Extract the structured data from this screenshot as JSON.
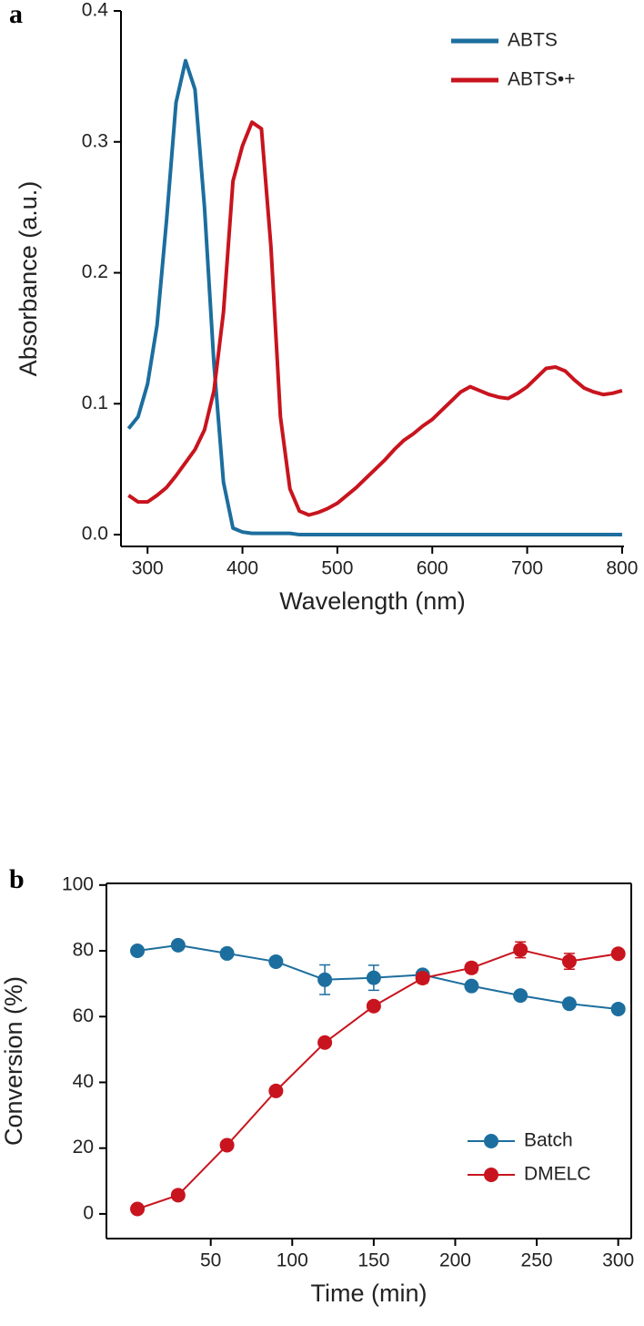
{
  "chart_data": [
    {
      "type": "line",
      "label": "a",
      "x_label": "Wavelength (nm)",
      "y_label": "Absorbance (a.u.)",
      "xlim": [
        272,
        802
      ],
      "ylim": [
        -0.009,
        0.4
      ],
      "xticks": [
        300,
        400,
        500,
        600,
        700,
        800
      ],
      "yticks": [
        {
          "value": 0,
          "label": "0.0"
        },
        0.1,
        0.2,
        0.3,
        0.4
      ],
      "box": false,
      "legend": "top-right",
      "x": [
        280,
        290,
        300,
        310,
        320,
        330,
        340,
        350,
        360,
        370,
        380,
        390,
        400,
        410,
        420,
        430,
        440,
        450,
        460,
        470,
        480,
        490,
        500,
        510,
        520,
        530,
        540,
        550,
        560,
        570,
        580,
        590,
        600,
        610,
        620,
        630,
        640,
        650,
        660,
        670,
        680,
        690,
        700,
        710,
        720,
        730,
        740,
        750,
        760,
        770,
        780,
        790,
        800
      ],
      "series": [
        {
          "name": "ABTS",
          "color": "#1c6e9e",
          "values": [
            0.081,
            0.09,
            0.115,
            0.16,
            0.24,
            0.33,
            0.362,
            0.34,
            0.25,
            0.13,
            0.04,
            0.005,
            0.002,
            0.001,
            0.001,
            0.001,
            0.001,
            0.001,
            0,
            0,
            0,
            0,
            0,
            0,
            0,
            0,
            0,
            0,
            0,
            0,
            0,
            0,
            0,
            0,
            0,
            0,
            0,
            0,
            0,
            0,
            0,
            0,
            0,
            0,
            0,
            0,
            0,
            0,
            0,
            0,
            0,
            0,
            0
          ]
        },
        {
          "name": "ABTS•+",
          "color": "#c8141e",
          "values": [
            0.03,
            0.025,
            0.025,
            0.03,
            0.036,
            0.045,
            0.055,
            0.065,
            0.08,
            0.11,
            0.17,
            0.27,
            0.297,
            0.315,
            0.31,
            0.22,
            0.09,
            0.035,
            0.018,
            0.015,
            0.017,
            0.02,
            0.024,
            0.03,
            0.036,
            0.043,
            0.05,
            0.057,
            0.065,
            0.072,
            0.077,
            0.083,
            0.088,
            0.095,
            0.102,
            0.109,
            0.113,
            0.11,
            0.107,
            0.105,
            0.104,
            0.108,
            0.113,
            0.12,
            0.127,
            0.128,
            0.125,
            0.118,
            0.112,
            0.109,
            0.107,
            0.108,
            0.11
          ]
        }
      ]
    },
    {
      "type": "line",
      "label": "b",
      "x_label": "Time (min)",
      "y_label": "Conversion (%)",
      "xlim": [
        -14,
        308
      ],
      "ylim": [
        -7.5,
        100.5
      ],
      "xticks": [
        50,
        100,
        150,
        200,
        250,
        300
      ],
      "yticks": [
        0,
        20,
        40,
        60,
        80,
        100
      ],
      "box": true,
      "markers": true,
      "legend": "bottom-right",
      "x": [
        5,
        30,
        60,
        90,
        120,
        150,
        180,
        210,
        240,
        270,
        300
      ],
      "series": [
        {
          "name": "Batch",
          "color": "#1c6e9e",
          "values": [
            80,
            81.7,
            79.2,
            76.7,
            71.2,
            71.8,
            72.7,
            69.3,
            66.4,
            63.9,
            62.3
          ],
          "errors": [
            0.5,
            0.5,
            1.2,
            1.3,
            4.5,
            3.8,
            0.8,
            0.5,
            1.2,
            0.5,
            0.5
          ]
        },
        {
          "name": "DMELC",
          "color": "#c8141e",
          "values": [
            1.5,
            5.7,
            20.9,
            37.4,
            52.1,
            63.2,
            71.7,
            74.8,
            80.3,
            76.8,
            79.1
          ],
          "errors": [
            0.3,
            0.3,
            0.3,
            1.2,
            0.5,
            0.5,
            1.6,
            1.5,
            2.4,
            2.4,
            0.5
          ]
        }
      ]
    }
  ]
}
